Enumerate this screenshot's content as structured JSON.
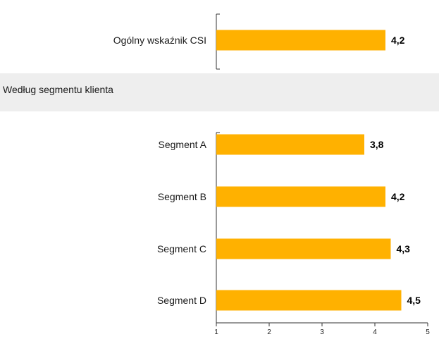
{
  "colors": {
    "bar": "#ffb100",
    "section_band": "#eeeeee",
    "axis": "#333333"
  },
  "chart_data": {
    "type": "bar",
    "orientation": "horizontal",
    "title": "",
    "xlabel": "",
    "ylabel": "",
    "xlim": [
      1,
      5
    ],
    "x_ticks": [
      "1",
      "2",
      "3",
      "4",
      "5"
    ],
    "grid": false,
    "legend": "none",
    "groups": [
      {
        "heading": "",
        "categories": [
          "Ogólny wskaźnik CSI"
        ],
        "values": [
          4.2
        ],
        "value_labels": [
          "4,2"
        ]
      },
      {
        "heading": "Według segmentu klienta",
        "categories": [
          "Segment A",
          "Segment B",
          "Segment C",
          "Segment D"
        ],
        "values": [
          3.8,
          4.2,
          4.3,
          4.5
        ],
        "value_labels": [
          "3,8",
          "4,2",
          "4,3",
          "4,5"
        ]
      }
    ]
  }
}
